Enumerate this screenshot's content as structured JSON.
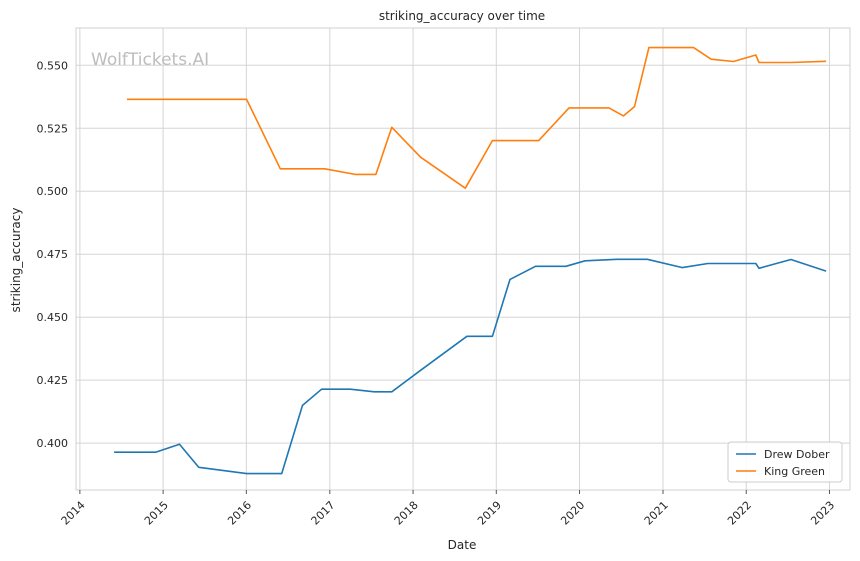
{
  "watermark": "WolfTickets.AI",
  "chart_data": {
    "type": "line",
    "title": "striking_accuracy over time",
    "xlabel": "Date",
    "ylabel": "striking_accuracy",
    "x_axis_type": "date",
    "xlim": [
      "2013-12-15",
      "2023-04-01"
    ],
    "ylim": [
      0.3814,
      0.5648
    ],
    "x_ticks": [
      "2014",
      "2015",
      "2016",
      "2017",
      "2018",
      "2019",
      "2020",
      "2021",
      "2022",
      "2023"
    ],
    "y_ticks": [
      "0.400",
      "0.425",
      "0.450",
      "0.475",
      "0.500",
      "0.525",
      "0.550"
    ],
    "grid": true,
    "legend_position": "lower-right",
    "series": [
      {
        "name": "Drew Dober",
        "color": "#1f77b4",
        "points": [
          [
            "2014-05-31",
            0.3964
          ],
          [
            "2014-11-29",
            0.3964
          ],
          [
            "2015-03-14",
            0.3996
          ],
          [
            "2015-06-06",
            0.3904
          ],
          [
            "2016-01-02",
            0.3879
          ],
          [
            "2016-06-04",
            0.3879
          ],
          [
            "2016-09-03",
            0.415
          ],
          [
            "2016-11-26",
            0.4214
          ],
          [
            "2017-04-01",
            0.4214
          ],
          [
            "2017-07-15",
            0.4204
          ],
          [
            "2017-09-30",
            0.4204
          ],
          [
            "2018-02-03",
            0.4289
          ],
          [
            "2018-08-25",
            0.4424
          ],
          [
            "2018-12-15",
            0.4424
          ],
          [
            "2019-03-02",
            0.465
          ],
          [
            "2019-06-22",
            0.4702
          ],
          [
            "2019-11-02",
            0.4702
          ],
          [
            "2020-01-25",
            0.4724
          ],
          [
            "2020-06-13",
            0.473
          ],
          [
            "2020-10-24",
            0.473
          ],
          [
            "2021-03-27",
            0.4697
          ],
          [
            "2021-07-17",
            0.4713
          ],
          [
            "2022-02-12",
            0.4713
          ],
          [
            "2022-02-26",
            0.4694
          ],
          [
            "2022-07-16",
            0.4729
          ],
          [
            "2022-12-17",
            0.4683
          ]
        ]
      },
      {
        "name": "King Green",
        "color": "#ff7f0e",
        "points": [
          [
            "2014-07-26",
            0.5365
          ],
          [
            "2016-01-02",
            0.5365
          ],
          [
            "2016-05-29",
            0.5089
          ],
          [
            "2016-12-10",
            0.5089
          ],
          [
            "2017-04-22",
            0.5067
          ],
          [
            "2017-07-22",
            0.5067
          ],
          [
            "2017-09-30",
            0.5254
          ],
          [
            "2018-02-03",
            0.5135
          ],
          [
            "2018-08-18",
            0.5012
          ],
          [
            "2018-12-15",
            0.5201
          ],
          [
            "2019-07-06",
            0.5201
          ],
          [
            "2019-11-16",
            0.5331
          ],
          [
            "2020-05-09",
            0.5331
          ],
          [
            "2020-07-12",
            0.5299
          ],
          [
            "2020-08-29",
            0.5336
          ],
          [
            "2020-10-31",
            0.557
          ],
          [
            "2021-05-15",
            0.557
          ],
          [
            "2021-07-31",
            0.5524
          ],
          [
            "2021-11-06",
            0.5515
          ],
          [
            "2022-02-12",
            0.5541
          ],
          [
            "2022-02-26",
            0.5511
          ],
          [
            "2022-07-16",
            0.5511
          ],
          [
            "2022-12-17",
            0.5516
          ]
        ]
      }
    ]
  }
}
